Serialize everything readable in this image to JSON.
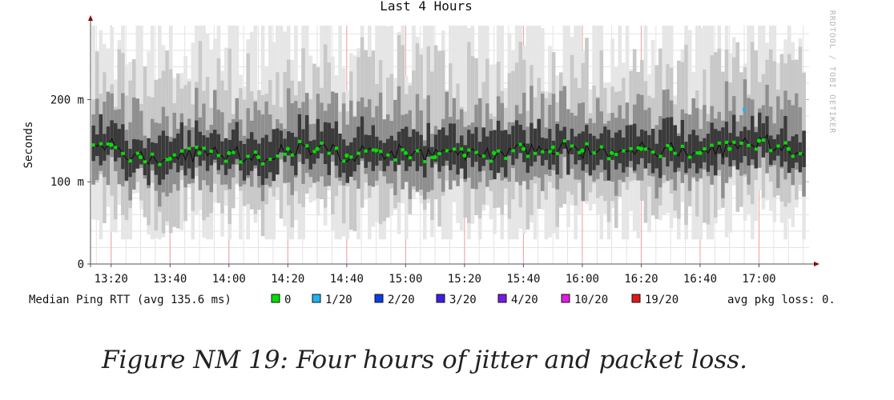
{
  "chart_data": {
    "type": "line",
    "title": "Last 4 Hours",
    "ylabel": "Seconds",
    "watermark": "RRDTOOL / TOBI OETIKER",
    "ylim": [
      0,
      0.29
    ],
    "yticks": [
      {
        "value": 0,
        "label": "0"
      },
      {
        "value": 0.1,
        "label": "100 m"
      },
      {
        "value": 0.2,
        "label": "200 m"
      }
    ],
    "xlim": [
      "13:13",
      "17:17"
    ],
    "xticks": [
      "13:20",
      "13:40",
      "14:00",
      "14:20",
      "14:40",
      "15:00",
      "15:20",
      "15:40",
      "16:00",
      "16:20",
      "16:40",
      "17:00"
    ],
    "grid": true,
    "series": [
      {
        "name": "Median Ping RTT",
        "color": "#00e000",
        "times": [
          "13:20",
          "13:30",
          "13:40",
          "13:50",
          "14:00",
          "14:10",
          "14:20",
          "14:30",
          "14:40",
          "14:50",
          "15:00",
          "15:10",
          "15:20",
          "15:30",
          "15:40",
          "15:50",
          "16:00",
          "16:10",
          "16:20",
          "16:30",
          "16:40",
          "16:50",
          "17:00",
          "17:10"
        ],
        "values": [
          0.145,
          0.13,
          0.128,
          0.135,
          0.135,
          0.13,
          0.14,
          0.14,
          0.132,
          0.138,
          0.135,
          0.13,
          0.132,
          0.135,
          0.14,
          0.142,
          0.138,
          0.135,
          0.14,
          0.14,
          0.135,
          0.14,
          0.15,
          0.14
        ]
      }
    ],
    "legend": {
      "placement": "bottom",
      "median_label": "Median Ping RTT (avg 135.6 ms)",
      "items": [
        {
          "label": "0",
          "color": "#00e000"
        },
        {
          "label": "1/20",
          "color": "#1fb4f0"
        },
        {
          "label": "2/20",
          "color": "#0a3ee6"
        },
        {
          "label": "3/20",
          "color": "#3a1fe8"
        },
        {
          "label": "4/20",
          "color": "#7a1ae8"
        },
        {
          "label": "10/20",
          "color": "#e61ae0"
        },
        {
          "label": "19/20",
          "color": "#e01a1a"
        }
      ],
      "loss_label": "avg pkg loss: 0."
    }
  },
  "caption": "Figure NM 19: Four hours of jitter and packet loss."
}
